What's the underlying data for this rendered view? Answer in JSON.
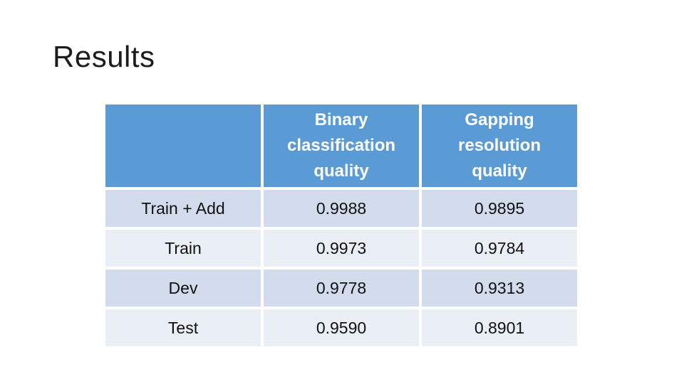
{
  "slide": {
    "title": "Results"
  },
  "table": {
    "header": [
      "",
      "Binary classification quality",
      "Gapping resolution quality"
    ],
    "rows": [
      {
        "label": "Train + Add",
        "binary": "0.9988",
        "gapping": "0.9895"
      },
      {
        "label": "Train",
        "binary": "0.9973",
        "gapping": "0.9784"
      },
      {
        "label": "Dev",
        "binary": "0.9778",
        "gapping": "0.9313"
      },
      {
        "label": "Test",
        "binary": "0.9590",
        "gapping": "0.8901"
      }
    ]
  },
  "colors": {
    "background": "#ffffff",
    "title_text": "#1c1c1c",
    "header_bg": "#5b9bd5",
    "header_text": "#ffffff",
    "band_dark": "#d2dcec",
    "band_light": "#eaeef5",
    "body_text": "#111111"
  }
}
